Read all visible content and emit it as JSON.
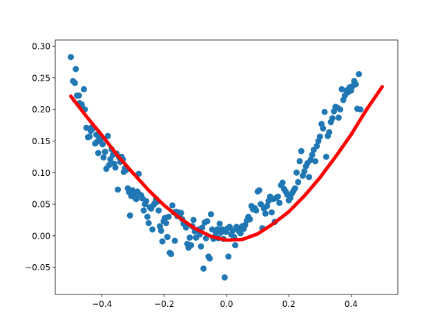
{
  "chart_data": {
    "type": "scatter",
    "title": "",
    "xlabel": "",
    "ylabel": "",
    "xlim": [
      -0.55,
      0.55
    ],
    "ylim": [
      -0.093,
      0.31
    ],
    "grid": false,
    "x_ticks": [
      -0.4,
      -0.2,
      0.0,
      0.2,
      0.4
    ],
    "x_tick_labels": [
      "−0.4",
      "−0.2",
      "0.0",
      "0.2",
      "0.4"
    ],
    "y_ticks": [
      -0.05,
      0.0,
      0.05,
      0.1,
      0.15,
      0.2,
      0.25,
      0.3
    ],
    "y_tick_labels": [
      "−0.05",
      "0.00",
      "0.05",
      "0.10",
      "0.15",
      "0.20",
      "0.25",
      "0.30"
    ],
    "colors": {
      "scatter": "#1f77b4",
      "fit_line": "#ff0000"
    },
    "series": [
      {
        "kind": "scatter",
        "points": [
          [
            -0.5,
            0.283
          ],
          [
            -0.493,
            0.245
          ],
          [
            -0.487,
            0.242
          ],
          [
            -0.484,
            0.264
          ],
          [
            -0.48,
            0.222
          ],
          [
            -0.474,
            0.222
          ],
          [
            -0.472,
            0.21
          ],
          [
            -0.468,
            0.205
          ],
          [
            -0.465,
            0.208
          ],
          [
            -0.46,
            0.201
          ],
          [
            -0.458,
            0.232
          ],
          [
            -0.455,
            0.2
          ],
          [
            -0.45,
            0.171
          ],
          [
            -0.445,
            0.156
          ],
          [
            -0.44,
            0.157
          ],
          [
            -0.436,
            0.166
          ],
          [
            -0.432,
            0.172
          ],
          [
            -0.428,
            0.17
          ],
          [
            -0.422,
            0.146
          ],
          [
            -0.418,
            0.16
          ],
          [
            -0.415,
            0.149
          ],
          [
            -0.412,
            0.131
          ],
          [
            -0.409,
            0.156
          ],
          [
            -0.404,
            0.153
          ],
          [
            -0.398,
            0.145
          ],
          [
            -0.395,
            0.124
          ],
          [
            -0.39,
            0.133
          ],
          [
            -0.386,
            0.106
          ],
          [
            -0.381,
            0.158
          ],
          [
            -0.377,
            0.112
          ],
          [
            -0.373,
            0.121
          ],
          [
            -0.369,
            0.137
          ],
          [
            -0.365,
            0.128
          ],
          [
            -0.361,
            0.114
          ],
          [
            -0.357,
            0.108
          ],
          [
            -0.353,
            0.13
          ],
          [
            -0.349,
            0.073
          ],
          [
            -0.345,
            0.124
          ],
          [
            -0.341,
            0.117
          ],
          [
            -0.337,
            0.125
          ],
          [
            -0.333,
            0.121
          ],
          [
            -0.33,
            0.101
          ],
          [
            -0.326,
            0.107
          ],
          [
            -0.322,
            0.104
          ],
          [
            -0.317,
            0.075
          ],
          [
            -0.313,
            0.069
          ],
          [
            -0.31,
            0.032
          ],
          [
            -0.306,
            0.063
          ],
          [
            -0.302,
            0.072
          ],
          [
            -0.298,
            0.066
          ],
          [
            -0.294,
            0.06
          ],
          [
            -0.29,
            0.058
          ],
          [
            -0.286,
            0.07
          ],
          [
            -0.282,
            0.098
          ],
          [
            -0.278,
            0.065
          ],
          [
            -0.274,
            0.064
          ],
          [
            -0.27,
            0.059
          ],
          [
            -0.266,
            0.04
          ],
          [
            -0.262,
            0.05
          ],
          [
            -0.258,
            0.055
          ],
          [
            -0.254,
            0.03
          ],
          [
            -0.25,
            0.02
          ],
          [
            -0.246,
            0.045
          ],
          [
            -0.242,
            0.043
          ],
          [
            -0.238,
            0.01
          ],
          [
            -0.234,
            0.049
          ],
          [
            -0.23,
            0.052
          ],
          [
            -0.226,
            0.058
          ],
          [
            -0.222,
            0.054
          ],
          [
            -0.218,
            0.04
          ],
          [
            -0.214,
            0.015
          ],
          [
            -0.21,
            0.008
          ],
          [
            -0.206,
            -0.009
          ],
          [
            -0.202,
            0.023
          ],
          [
            -0.198,
            0.028
          ],
          [
            -0.194,
            0.02
          ],
          [
            -0.19,
            -0.002
          ],
          [
            -0.186,
            0.03
          ],
          [
            -0.182,
            -0.027
          ],
          [
            -0.178,
            -0.029
          ],
          [
            -0.174,
            0.048
          ],
          [
            -0.17,
            0.037
          ],
          [
            -0.166,
            -0.008
          ],
          [
            -0.162,
            0.038
          ],
          [
            -0.158,
            0.031
          ],
          [
            -0.154,
            0.037
          ],
          [
            -0.15,
            0.032
          ],
          [
            -0.146,
            0.036
          ],
          [
            -0.142,
            0.026
          ],
          [
            -0.138,
            0.019
          ],
          [
            -0.134,
            0.019
          ],
          [
            -0.13,
            0.013
          ],
          [
            -0.126,
            -0.013
          ],
          [
            -0.122,
            -0.019
          ],
          [
            -0.118,
            -0.003
          ],
          [
            -0.114,
            -0.015
          ],
          [
            -0.11,
            0.015
          ],
          [
            -0.106,
            0.025
          ],
          [
            -0.102,
            0.007
          ],
          [
            -0.098,
            -0.003
          ],
          [
            -0.094,
            0.008
          ],
          [
            -0.09,
            0.01
          ],
          [
            -0.086,
            0.002
          ],
          [
            -0.082,
            -0.017
          ],
          [
            -0.078,
            0.013
          ],
          [
            -0.074,
            -0.052
          ],
          [
            -0.07,
            0.021
          ],
          [
            -0.066,
            -0.004
          ],
          [
            -0.062,
            0.023
          ],
          [
            -0.058,
            -0.033
          ],
          [
            -0.054,
            -0.036
          ],
          [
            -0.05,
            0.034
          ],
          [
            -0.046,
            0.01
          ],
          [
            -0.042,
            -0.005
          ],
          [
            -0.038,
            -0.002
          ],
          [
            -0.034,
            0.005
          ],
          [
            -0.03,
            0.01
          ],
          [
            -0.026,
            -0.004
          ],
          [
            -0.022,
            0.019
          ],
          [
            -0.018,
            0.005
          ],
          [
            -0.014,
            0.01
          ],
          [
            -0.01,
            -0.005
          ],
          [
            -0.006,
            -0.066
          ],
          [
            -0.002,
            0.006
          ],
          [
            0.002,
            0.011
          ],
          [
            0.006,
            -0.033
          ],
          [
            0.01,
            0.014
          ],
          [
            0.015,
            0.002
          ],
          [
            0.02,
            0.008
          ],
          [
            0.024,
            -0.002
          ],
          [
            0.028,
            -0.015
          ],
          [
            0.032,
            0.014
          ],
          [
            0.036,
            0.012
          ],
          [
            0.04,
            0.007
          ],
          [
            0.045,
            0.004
          ],
          [
            0.05,
            0.015
          ],
          [
            0.055,
            0.011
          ],
          [
            0.06,
            0.017
          ],
          [
            0.065,
            0.024
          ],
          [
            0.07,
            0.03
          ],
          [
            0.075,
            0.026
          ],
          [
            0.08,
            0.047
          ],
          [
            0.085,
            0.042
          ],
          [
            0.09,
            0.044
          ],
          [
            0.095,
            0.04
          ],
          [
            0.1,
            0.07
          ],
          [
            0.105,
            0.072
          ],
          [
            0.11,
            0.05
          ],
          [
            0.115,
            0.012
          ],
          [
            0.12,
            0.043
          ],
          [
            0.125,
            0.035
          ],
          [
            0.13,
            0.047
          ],
          [
            0.135,
            0.055
          ],
          [
            0.14,
            0.062
          ],
          [
            0.145,
            0.037
          ],
          [
            0.15,
            0.058
          ],
          [
            0.155,
            0.022
          ],
          [
            0.16,
            0.06
          ],
          [
            0.165,
            0.062
          ],
          [
            0.17,
            0.052
          ],
          [
            0.175,
            0.08
          ],
          [
            0.18,
            0.084
          ],
          [
            0.185,
            0.074
          ],
          [
            0.19,
            0.07
          ],
          [
            0.195,
            0.065
          ],
          [
            0.2,
            0.056
          ],
          [
            0.205,
            0.06
          ],
          [
            0.21,
            0.067
          ],
          [
            0.215,
            0.071
          ],
          [
            0.22,
            0.075
          ],
          [
            0.225,
            0.1
          ],
          [
            0.23,
            0.085
          ],
          [
            0.235,
            0.118
          ],
          [
            0.24,
            0.134
          ],
          [
            0.245,
            0.095
          ],
          [
            0.25,
            0.102
          ],
          [
            0.255,
            0.11
          ],
          [
            0.26,
            0.115
          ],
          [
            0.265,
            0.093
          ],
          [
            0.27,
            0.12
          ],
          [
            0.275,
            0.128
          ],
          [
            0.28,
            0.136
          ],
          [
            0.285,
            0.118
          ],
          [
            0.29,
            0.142
          ],
          [
            0.295,
            0.15
          ],
          [
            0.3,
            0.157
          ],
          [
            0.305,
            0.177
          ],
          [
            0.31,
            0.17
          ],
          [
            0.315,
            0.196
          ],
          [
            0.32,
            0.125
          ],
          [
            0.325,
            0.158
          ],
          [
            0.33,
            0.164
          ],
          [
            0.335,
            0.18
          ],
          [
            0.34,
            0.186
          ],
          [
            0.345,
            0.197
          ],
          [
            0.35,
            0.204
          ],
          [
            0.355,
            0.203
          ],
          [
            0.36,
            0.187
          ],
          [
            0.365,
            0.2
          ],
          [
            0.37,
            0.232
          ],
          [
            0.375,
            0.215
          ],
          [
            0.38,
            0.222
          ],
          [
            0.385,
            0.23
          ],
          [
            0.39,
            0.227
          ],
          [
            0.395,
            0.235
          ],
          [
            0.4,
            0.23
          ],
          [
            0.405,
            0.237
          ],
          [
            0.41,
            0.245
          ],
          [
            0.415,
            0.24
          ],
          [
            0.42,
            0.201
          ],
          [
            0.425,
            0.256
          ],
          [
            0.43,
            0.2
          ]
        ]
      },
      {
        "kind": "line",
        "x": [
          -0.5,
          -0.45,
          -0.4,
          -0.35,
          -0.3,
          -0.25,
          -0.2,
          -0.15,
          -0.1,
          -0.05,
          0.0,
          0.05,
          0.1,
          0.15,
          0.2,
          0.25,
          0.3,
          0.35,
          0.4,
          0.45,
          0.5
        ],
        "y": [
          0.221,
          0.189,
          0.159,
          0.127,
          0.099,
          0.072,
          0.048,
          0.028,
          0.011,
          -0.001,
          -0.007,
          -0.006,
          0.003,
          0.019,
          0.038,
          0.063,
          0.092,
          0.125,
          0.16,
          0.2,
          0.236
        ]
      }
    ]
  }
}
